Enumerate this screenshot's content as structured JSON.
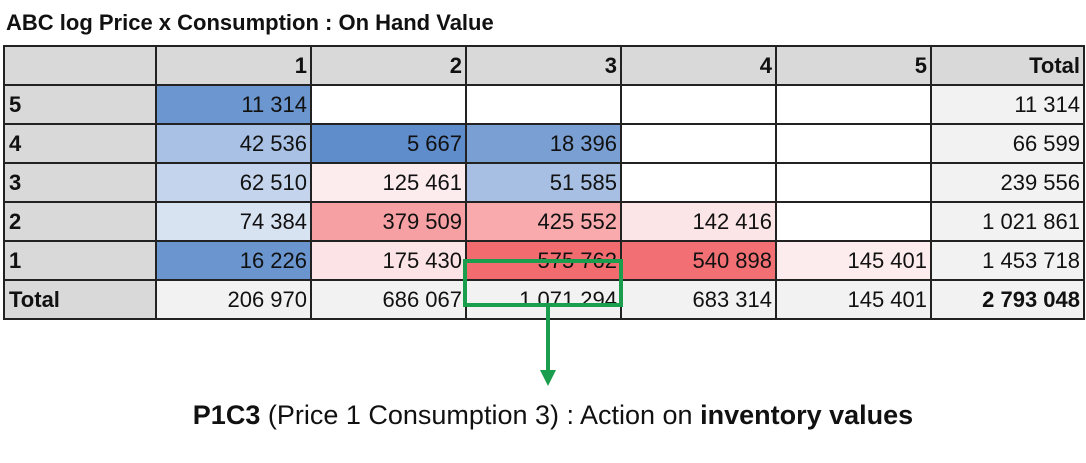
{
  "title": "ABC log Price x Consumption : On Hand Value",
  "table": {
    "header": [
      null,
      "1",
      "2",
      "3",
      "4",
      "5",
      "Total"
    ],
    "rows": [
      [
        "5",
        "11 314",
        null,
        null,
        null,
        null,
        "11 314"
      ],
      [
        "4",
        "42 536",
        "5 667",
        "18 396",
        null,
        null,
        "66 599"
      ],
      [
        "3",
        "62 510",
        "125 461",
        "51 585",
        null,
        null,
        "239 556"
      ],
      [
        "2",
        "74 384",
        "379 509",
        "425 552",
        "142 416",
        null,
        "1 021 861"
      ],
      [
        "1",
        "16 226",
        "175 430",
        "575 762",
        "540 898",
        "145 401",
        "1 453 718"
      ],
      [
        "Total",
        "206 970",
        "686 067",
        "1 071 294",
        "683 314",
        "145 401",
        "2 793 048"
      ]
    ]
  },
  "annotation": {
    "code": "P1C3",
    "text": "(Price 1 Consumption 3) : Action on",
    "emphasis": "inventory values"
  }
}
